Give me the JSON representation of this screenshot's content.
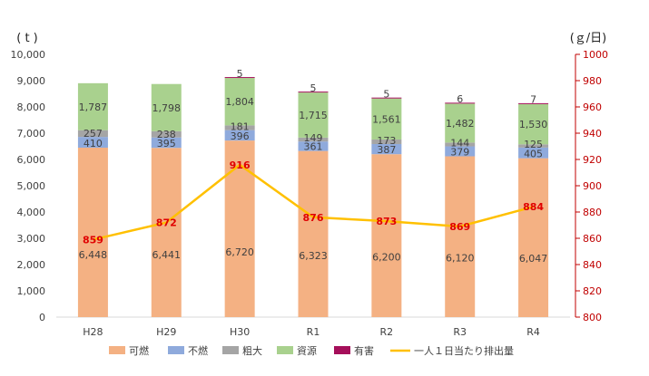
{
  "chart_data": {
    "type": "bar",
    "stacked": true,
    "categories": [
      "H28",
      "H29",
      "H30",
      "R1",
      "R2",
      "R3",
      "R4"
    ],
    "series": [
      {
        "name": "可燃",
        "values": [
          6448,
          6441,
          6720,
          6323,
          6200,
          6120,
          6047
        ],
        "color": "#f4b183",
        "labels": [
          "6,448",
          "6,441",
          "6,720",
          "6,323",
          "6,200",
          "6,120",
          "6,047"
        ]
      },
      {
        "name": "不燃",
        "values": [
          410,
          395,
          396,
          361,
          387,
          379,
          405
        ],
        "color": "#8faadc",
        "labels": [
          "410",
          "395",
          "396",
          "361",
          "387",
          "379",
          "405"
        ]
      },
      {
        "name": "粗大",
        "values": [
          257,
          238,
          181,
          149,
          173,
          144,
          125
        ],
        "color": "#a5a5a5",
        "labels": [
          "257",
          "238",
          "181",
          "149",
          "173",
          "144",
          "125"
        ]
      },
      {
        "name": "資源",
        "values": [
          1787,
          1798,
          1804,
          1715,
          1561,
          1482,
          1530
        ],
        "color": "#a9d18e",
        "labels": [
          "1,787",
          "1,798",
          "1,804",
          "1,715",
          "1,561",
          "1,482",
          "1,530"
        ]
      },
      {
        "name": "有害",
        "values": [
          0,
          0,
          5,
          5,
          5,
          6,
          7
        ],
        "color": "#a50f5a",
        "labels": [
          "",
          "",
          "5",
          "5",
          "5",
          "6",
          "7"
        ]
      }
    ],
    "line": {
      "name": "一人１日当たり排出量",
      "values": [
        859,
        872,
        916,
        876,
        873,
        869,
        884
      ],
      "color": "#ffc000",
      "label_color": "#e00000"
    },
    "y_left": {
      "unit": "( t )",
      "ylim": [
        0,
        10000
      ],
      "ticks": [
        "0",
        "1,000",
        "2,000",
        "3,000",
        "4,000",
        "5,000",
        "6,000",
        "7,000",
        "8,000",
        "9,000",
        "10,000"
      ]
    },
    "y_right": {
      "unit": "(ｇ/日)",
      "ylim": [
        800,
        1000
      ],
      "ticks": [
        "800",
        "820",
        "840",
        "860",
        "880",
        "900",
        "920",
        "940",
        "960",
        "980",
        "1000"
      ],
      "color": "#c00000"
    },
    "legend_position": "bottom",
    "grid": false
  }
}
